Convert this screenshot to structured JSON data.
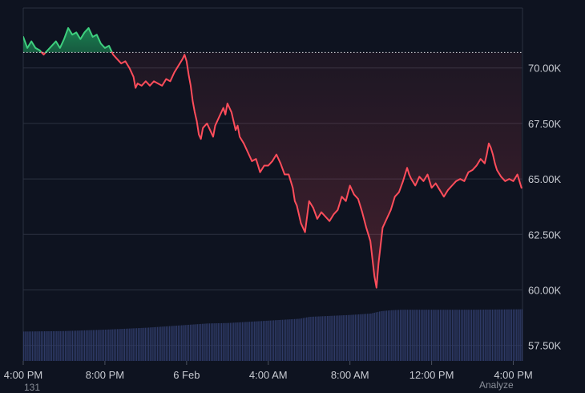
{
  "chart_data": {
    "type": "line",
    "baseline": 70700,
    "ylim": [
      56800,
      72700
    ],
    "y_ticks": [
      {
        "v": 70000,
        "label": "70.00K"
      },
      {
        "v": 67500,
        "label": "67.50K"
      },
      {
        "v": 65000,
        "label": "65.00K"
      },
      {
        "v": 62500,
        "label": "62.50K"
      },
      {
        "v": 60000,
        "label": "60.00K"
      },
      {
        "v": 57500,
        "label": "57.50K"
      }
    ],
    "x_ticks": [
      "4:00 PM",
      "8:00 PM",
      "6 Feb",
      "4:00 AM",
      "8:00 AM",
      "12:00 PM",
      "4:00 PM"
    ],
    "x_tick_positions": [
      0,
      4,
      8,
      12,
      16,
      20,
      24
    ],
    "x_range": [
      0,
      24.45
    ],
    "series": [
      {
        "values": [
          [
            0.0,
            71.4
          ],
          [
            0.2,
            70.9
          ],
          [
            0.4,
            71.2
          ],
          [
            0.6,
            70.9
          ],
          [
            0.8,
            70.8
          ],
          [
            1.0,
            70.6
          ],
          [
            1.2,
            70.8
          ],
          [
            1.4,
            71.0
          ],
          [
            1.6,
            71.2
          ],
          [
            1.8,
            70.9
          ],
          [
            2.0,
            71.3
          ],
          [
            2.2,
            71.8
          ],
          [
            2.4,
            71.5
          ],
          [
            2.6,
            71.6
          ],
          [
            2.8,
            71.3
          ],
          [
            3.0,
            71.6
          ],
          [
            3.2,
            71.8
          ],
          [
            3.4,
            71.4
          ],
          [
            3.6,
            71.5
          ],
          [
            3.8,
            71.1
          ],
          [
            4.0,
            70.9
          ],
          [
            4.2,
            71.0
          ],
          [
            4.4,
            70.6
          ],
          [
            4.6,
            70.4
          ],
          [
            4.8,
            70.2
          ],
          [
            5.0,
            70.3
          ],
          [
            5.2,
            70.0
          ],
          [
            5.4,
            69.6
          ],
          [
            5.5,
            69.1
          ],
          [
            5.6,
            69.3
          ],
          [
            5.8,
            69.2
          ],
          [
            6.0,
            69.4
          ],
          [
            6.2,
            69.2
          ],
          [
            6.4,
            69.4
          ],
          [
            6.6,
            69.3
          ],
          [
            6.8,
            69.2
          ],
          [
            7.0,
            69.5
          ],
          [
            7.2,
            69.4
          ],
          [
            7.4,
            69.8
          ],
          [
            7.6,
            70.1
          ],
          [
            7.8,
            70.4
          ],
          [
            7.9,
            70.6
          ],
          [
            8.0,
            70.3
          ],
          [
            8.1,
            69.7
          ],
          [
            8.2,
            69.2
          ],
          [
            8.3,
            68.5
          ],
          [
            8.4,
            68.0
          ],
          [
            8.5,
            67.6
          ],
          [
            8.6,
            67.0
          ],
          [
            8.7,
            66.8
          ],
          [
            8.8,
            67.3
          ],
          [
            9.0,
            67.5
          ],
          [
            9.2,
            67.1
          ],
          [
            9.3,
            66.9
          ],
          [
            9.4,
            67.4
          ],
          [
            9.6,
            67.8
          ],
          [
            9.8,
            68.2
          ],
          [
            9.9,
            67.9
          ],
          [
            10.0,
            68.4
          ],
          [
            10.2,
            68.0
          ],
          [
            10.3,
            67.6
          ],
          [
            10.4,
            67.2
          ],
          [
            10.5,
            67.4
          ],
          [
            10.6,
            66.9
          ],
          [
            10.8,
            66.6
          ],
          [
            11.0,
            66.2
          ],
          [
            11.2,
            65.8
          ],
          [
            11.4,
            65.9
          ],
          [
            11.6,
            65.3
          ],
          [
            11.8,
            65.6
          ],
          [
            12.0,
            65.6
          ],
          [
            12.2,
            65.8
          ],
          [
            12.4,
            66.1
          ],
          [
            12.6,
            65.7
          ],
          [
            12.8,
            65.2
          ],
          [
            13.0,
            65.2
          ],
          [
            13.2,
            64.6
          ],
          [
            13.3,
            64.0
          ],
          [
            13.4,
            63.8
          ],
          [
            13.6,
            63.0
          ],
          [
            13.8,
            62.6
          ],
          [
            14.0,
            64.0
          ],
          [
            14.2,
            63.7
          ],
          [
            14.4,
            63.2
          ],
          [
            14.6,
            63.5
          ],
          [
            14.8,
            63.3
          ],
          [
            15.0,
            63.1
          ],
          [
            15.2,
            63.4
          ],
          [
            15.4,
            63.6
          ],
          [
            15.6,
            64.2
          ],
          [
            15.8,
            64.0
          ],
          [
            16.0,
            64.7
          ],
          [
            16.2,
            64.3
          ],
          [
            16.4,
            64.1
          ],
          [
            16.6,
            63.5
          ],
          [
            16.8,
            62.8
          ],
          [
            17.0,
            62.2
          ],
          [
            17.1,
            61.4
          ],
          [
            17.2,
            60.6
          ],
          [
            17.3,
            60.1
          ],
          [
            17.4,
            61.2
          ],
          [
            17.6,
            62.8
          ],
          [
            17.8,
            63.2
          ],
          [
            18.0,
            63.6
          ],
          [
            18.2,
            64.2
          ],
          [
            18.4,
            64.4
          ],
          [
            18.6,
            64.9
          ],
          [
            18.8,
            65.5
          ],
          [
            18.9,
            65.2
          ],
          [
            19.0,
            65.0
          ],
          [
            19.2,
            64.7
          ],
          [
            19.4,
            65.1
          ],
          [
            19.6,
            64.9
          ],
          [
            19.8,
            65.2
          ],
          [
            20.0,
            64.6
          ],
          [
            20.2,
            64.8
          ],
          [
            20.4,
            64.5
          ],
          [
            20.6,
            64.2
          ],
          [
            20.8,
            64.5
          ],
          [
            21.0,
            64.7
          ],
          [
            21.2,
            64.9
          ],
          [
            21.4,
            65.0
          ],
          [
            21.6,
            64.9
          ],
          [
            21.8,
            65.3
          ],
          [
            22.0,
            65.4
          ],
          [
            22.2,
            65.6
          ],
          [
            22.4,
            65.9
          ],
          [
            22.6,
            65.7
          ],
          [
            22.7,
            66.1
          ],
          [
            22.8,
            66.6
          ],
          [
            22.9,
            66.4
          ],
          [
            23.0,
            66.1
          ],
          [
            23.1,
            65.7
          ],
          [
            23.2,
            65.4
          ],
          [
            23.4,
            65.1
          ],
          [
            23.6,
            64.9
          ],
          [
            23.8,
            65.0
          ],
          [
            24.0,
            64.9
          ],
          [
            24.2,
            65.2
          ],
          [
            24.3,
            64.9
          ],
          [
            24.4,
            64.6
          ]
        ]
      }
    ],
    "volume": {
      "values": [
        [
          0.0,
          0.62
        ],
        [
          2.0,
          0.63
        ],
        [
          4.0,
          0.66
        ],
        [
          6.0,
          0.7
        ],
        [
          8.0,
          0.76
        ],
        [
          9.0,
          0.79
        ],
        [
          10.0,
          0.8
        ],
        [
          12.0,
          0.85
        ],
        [
          13.5,
          0.89
        ],
        [
          14.0,
          0.93
        ],
        [
          15.0,
          0.95
        ],
        [
          16.0,
          0.97
        ],
        [
          17.0,
          1.0
        ],
        [
          17.5,
          1.05
        ],
        [
          18.0,
          1.07
        ],
        [
          18.5,
          1.08
        ],
        [
          19.0,
          1.08
        ],
        [
          20.0,
          1.08
        ],
        [
          21.0,
          1.08
        ],
        [
          22.0,
          1.08
        ],
        [
          24.4,
          1.09
        ]
      ]
    },
    "colors": {
      "up": "#3ecf7e",
      "up_fill": "#1c8a55",
      "down": "#ff4d5b",
      "volume": "#2e3a66",
      "grid": "#2b3140",
      "baseline": "#d9dbe0",
      "background": "#0e1320"
    }
  },
  "footer": {
    "left_text": "131",
    "right_text": "Analyze"
  }
}
